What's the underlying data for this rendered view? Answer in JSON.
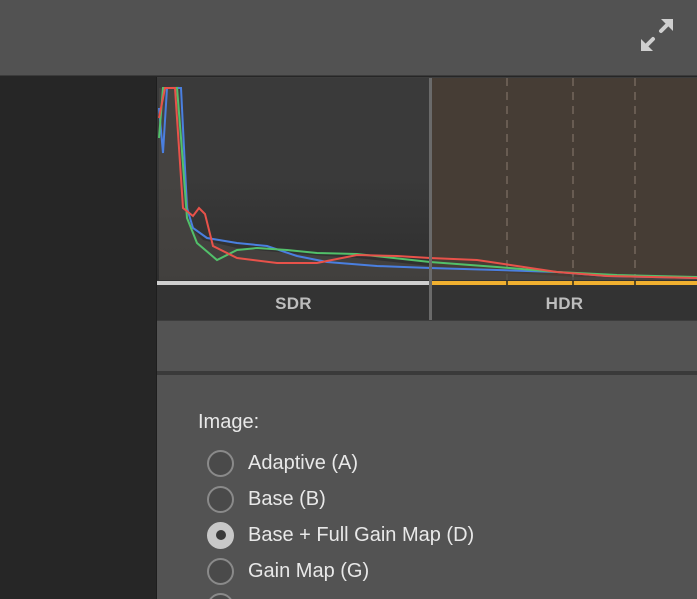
{
  "histogram": {
    "sdr_label": "SDR",
    "hdr_label": "HDR"
  },
  "image_mode": {
    "title": "Image:",
    "options": [
      {
        "label": "Adaptive (A)",
        "selected": false
      },
      {
        "label": "Base (B)",
        "selected": false
      },
      {
        "label": "Base + Full Gain Map (D)",
        "selected": true
      },
      {
        "label": "Gain Map (G)",
        "selected": false
      }
    ]
  },
  "colors": {
    "hdr_accent": "#f0b030",
    "red_channel": "#e8524a",
    "green_channel": "#52c06a",
    "blue_channel": "#4a7fe0"
  },
  "icons": {
    "expand": "expand-arrows-icon"
  }
}
